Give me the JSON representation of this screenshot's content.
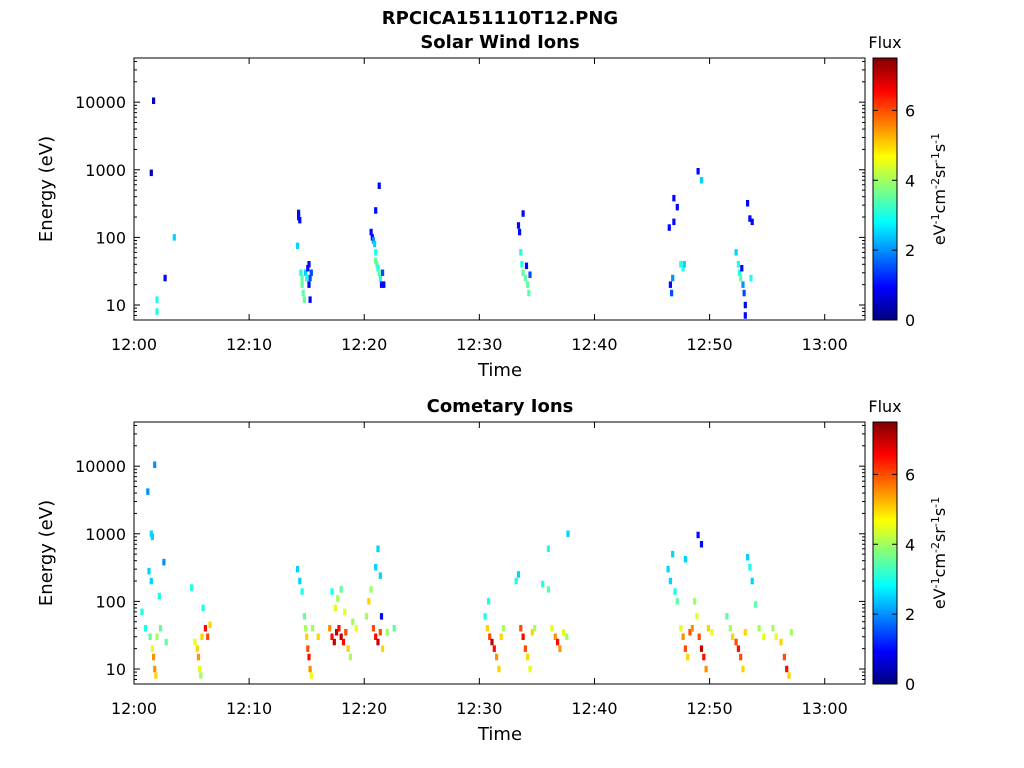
{
  "figure_title": "RPCICA151110T12.PNG",
  "chart_data": [
    {
      "type": "heatmap",
      "title": "Solar Wind Ions",
      "xlabel": "Time",
      "ylabel": "Energy (eV)",
      "y_scale": "log",
      "y_ticks": [
        "10",
        "100",
        "1000",
        "10000"
      ],
      "y_tick_values": [
        10,
        100,
        1000,
        10000
      ],
      "x_ticks": [
        "12:00",
        "12:10",
        "12:20",
        "12:30",
        "12:40",
        "12:50",
        "13:00"
      ],
      "x_tick_values_min": [
        0,
        10,
        20,
        30,
        40,
        50,
        60
      ],
      "xlim_min": [
        0,
        63.5
      ],
      "ylim": [
        6,
        45000
      ],
      "colorbar": {
        "label_top": "Flux",
        "units": "eV-1cm-2sr-1s-1",
        "ticks": [
          "0",
          "2",
          "4",
          "6"
        ],
        "tick_values": [
          0,
          2,
          4,
          6
        ],
        "range": [
          0,
          7.5
        ]
      },
      "cells": [
        [
          1.7,
          10500,
          0.5
        ],
        [
          1.5,
          900,
          0.5
        ],
        [
          2.7,
          25,
          1.0
        ],
        [
          2.0,
          8,
          3.0
        ],
        [
          2.0,
          12,
          3.0
        ],
        [
          3.5,
          100,
          2.5
        ],
        [
          14.2,
          75,
          2.5
        ],
        [
          14.3,
          230,
          1.0
        ],
        [
          14.3,
          200,
          1.0
        ],
        [
          14.4,
          180,
          1.0
        ],
        [
          14.5,
          30,
          3.0
        ],
        [
          14.6,
          25,
          3.5
        ],
        [
          14.6,
          20,
          3.5
        ],
        [
          14.7,
          15,
          3.5
        ],
        [
          14.8,
          12,
          3.5
        ],
        [
          14.9,
          30,
          2.5
        ],
        [
          15.0,
          25,
          3.0
        ],
        [
          15.1,
          35,
          1.0
        ],
        [
          15.2,
          40,
          1.0
        ],
        [
          15.2,
          20,
          1.0
        ],
        [
          15.3,
          25,
          1.5
        ],
        [
          15.3,
          12,
          1.0
        ],
        [
          15.4,
          30,
          1.5
        ],
        [
          20.6,
          120,
          1.0
        ],
        [
          20.7,
          100,
          1.0
        ],
        [
          20.8,
          90,
          2.0
        ],
        [
          20.9,
          80,
          2.5
        ],
        [
          21.0,
          60,
          3.0
        ],
        [
          21.0,
          45,
          3.5
        ],
        [
          21.1,
          40,
          3.5
        ],
        [
          21.2,
          35,
          3.0
        ],
        [
          21.3,
          30,
          3.5
        ],
        [
          21.4,
          25,
          3.0
        ],
        [
          21.5,
          20,
          1.0
        ],
        [
          21.6,
          30,
          1.5
        ],
        [
          21.7,
          20,
          1.0
        ],
        [
          21.0,
          250,
          1.0
        ],
        [
          21.3,
          580,
          1.0
        ],
        [
          33.4,
          150,
          1.0
        ],
        [
          33.5,
          120,
          1.0
        ],
        [
          33.6,
          60,
          3.0
        ],
        [
          33.7,
          40,
          3.0
        ],
        [
          33.8,
          30,
          3.5
        ],
        [
          34.0,
          25,
          3.5
        ],
        [
          34.2,
          20,
          3.5
        ],
        [
          34.3,
          15,
          3.5
        ],
        [
          34.1,
          38,
          1.0
        ],
        [
          34.4,
          28,
          1.5
        ],
        [
          33.8,
          225,
          1.0
        ],
        [
          46.5,
          140,
          1.0
        ],
        [
          46.6,
          20,
          1.0
        ],
        [
          46.7,
          15,
          1.5
        ],
        [
          46.8,
          25,
          2.0
        ],
        [
          46.9,
          380,
          1.0
        ],
        [
          46.9,
          170,
          1.0
        ],
        [
          47.2,
          280,
          1.0
        ],
        [
          47.5,
          40,
          3.0
        ],
        [
          47.7,
          35,
          3.0
        ],
        [
          47.8,
          40,
          2.5
        ],
        [
          49.0,
          950,
          1.0
        ],
        [
          49.3,
          700,
          2.5
        ],
        [
          52.3,
          60,
          2.5
        ],
        [
          52.5,
          40,
          3.0
        ],
        [
          52.6,
          30,
          3.0
        ],
        [
          52.7,
          25,
          3.5
        ],
        [
          52.8,
          35,
          1.0
        ],
        [
          52.9,
          20,
          2.0
        ],
        [
          53.0,
          15,
          1.5
        ],
        [
          53.1,
          10,
          1.0
        ],
        [
          53.1,
          7,
          1.0
        ],
        [
          53.3,
          320,
          1.0
        ],
        [
          53.5,
          190,
          1.0
        ],
        [
          53.6,
          25,
          3.0
        ],
        [
          53.7,
          170,
          1.0
        ]
      ]
    },
    {
      "type": "heatmap",
      "title": "Cometary Ions",
      "xlabel": "Time",
      "ylabel": "Energy (eV)",
      "y_scale": "log",
      "y_ticks": [
        "10",
        "100",
        "1000",
        "10000"
      ],
      "y_tick_values": [
        10,
        100,
        1000,
        10000
      ],
      "x_ticks": [
        "12:00",
        "12:10",
        "12:20",
        "12:30",
        "12:40",
        "12:50",
        "13:00"
      ],
      "x_tick_values_min": [
        0,
        10,
        20,
        30,
        40,
        50,
        60
      ],
      "xlim_min": [
        0,
        63.5
      ],
      "ylim": [
        6,
        45000
      ],
      "colorbar": {
        "label_top": "Flux",
        "units": "eV-1cm-2sr-1s-1",
        "ticks": [
          "0",
          "2",
          "4",
          "6"
        ],
        "tick_values": [
          0,
          2,
          4,
          6
        ],
        "range": [
          0,
          7.5
        ]
      },
      "cells": [
        [
          1.8,
          10500,
          2.0
        ],
        [
          1.2,
          4200,
          2.0
        ],
        [
          1.5,
          1000,
          2.5
        ],
        [
          1.6,
          900,
          2.5
        ],
        [
          1.3,
          280,
          2.5
        ],
        [
          1.5,
          200,
          2.5
        ],
        [
          2.6,
          380,
          2.0
        ],
        [
          2.2,
          120,
          3.0
        ],
        [
          0.7,
          70,
          3.0
        ],
        [
          1.0,
          40,
          3.0
        ],
        [
          1.4,
          30,
          3.5
        ],
        [
          1.6,
          20,
          4.5
        ],
        [
          1.7,
          15,
          5.5
        ],
        [
          1.8,
          10,
          5.5
        ],
        [
          1.9,
          8,
          5.0
        ],
        [
          2.0,
          30,
          4.0
        ],
        [
          2.3,
          40,
          3.5
        ],
        [
          2.8,
          25,
          3.5
        ],
        [
          5.0,
          160,
          3.0
        ],
        [
          5.3,
          25,
          4.5
        ],
        [
          5.5,
          20,
          5.0
        ],
        [
          5.6,
          15,
          5.5
        ],
        [
          5.7,
          10,
          4.5
        ],
        [
          5.8,
          8,
          4.0
        ],
        [
          5.9,
          30,
          5.0
        ],
        [
          6.2,
          40,
          6.5
        ],
        [
          6.4,
          30,
          6.0
        ],
        [
          6.6,
          45,
          5.0
        ],
        [
          6.0,
          80,
          3.0
        ],
        [
          14.2,
          300,
          2.5
        ],
        [
          14.4,
          200,
          2.5
        ],
        [
          14.6,
          140,
          3.0
        ],
        [
          14.8,
          60,
          3.5
        ],
        [
          14.9,
          40,
          4.0
        ],
        [
          15.0,
          30,
          5.0
        ],
        [
          15.1,
          20,
          6.0
        ],
        [
          15.2,
          15,
          6.5
        ],
        [
          15.3,
          10,
          5.5
        ],
        [
          15.4,
          8,
          4.5
        ],
        [
          15.5,
          40,
          4.0
        ],
        [
          16.0,
          30,
          5.0
        ],
        [
          17.0,
          40,
          5.5
        ],
        [
          17.2,
          30,
          6.5
        ],
        [
          17.4,
          25,
          7.0
        ],
        [
          17.6,
          35,
          7.0
        ],
        [
          17.8,
          40,
          6.5
        ],
        [
          18.0,
          30,
          7.0
        ],
        [
          18.2,
          25,
          6.5
        ],
        [
          18.4,
          35,
          6.0
        ],
        [
          18.6,
          20,
          5.0
        ],
        [
          18.8,
          15,
          4.0
        ],
        [
          17.5,
          80,
          4.5
        ],
        [
          17.7,
          110,
          4.0
        ],
        [
          18.0,
          150,
          3.5
        ],
        [
          18.3,
          70,
          4.5
        ],
        [
          17.2,
          140,
          3.0
        ],
        [
          19.0,
          50,
          4.0
        ],
        [
          19.3,
          40,
          4.5
        ],
        [
          20.2,
          60,
          4.0
        ],
        [
          20.4,
          100,
          5.0
        ],
        [
          20.6,
          150,
          4.0
        ],
        [
          20.8,
          40,
          6.0
        ],
        [
          21.0,
          30,
          6.5
        ],
        [
          21.2,
          25,
          7.0
        ],
        [
          21.4,
          35,
          6.0
        ],
        [
          21.6,
          20,
          5.0
        ],
        [
          21.0,
          320,
          2.5
        ],
        [
          21.2,
          600,
          2.5
        ],
        [
          21.4,
          240,
          2.5
        ],
        [
          22.0,
          35,
          4.0
        ],
        [
          22.6,
          40,
          3.5
        ],
        [
          21.5,
          60,
          1.0
        ],
        [
          30.5,
          60,
          3.0
        ],
        [
          30.7,
          40,
          5.0
        ],
        [
          30.9,
          30,
          6.0
        ],
        [
          31.1,
          25,
          7.0
        ],
        [
          31.3,
          20,
          6.5
        ],
        [
          31.5,
          15,
          5.5
        ],
        [
          31.7,
          10,
          5.0
        ],
        [
          31.9,
          30,
          5.0
        ],
        [
          32.1,
          40,
          4.0
        ],
        [
          30.8,
          100,
          3.0
        ],
        [
          33.2,
          200,
          3.0
        ],
        [
          33.4,
          250,
          2.5
        ],
        [
          33.6,
          40,
          6.0
        ],
        [
          33.8,
          30,
          6.5
        ],
        [
          34.0,
          20,
          6.0
        ],
        [
          34.2,
          15,
          5.0
        ],
        [
          34.4,
          10,
          4.5
        ],
        [
          34.6,
          35,
          5.0
        ],
        [
          34.8,
          40,
          4.0
        ],
        [
          35.5,
          180,
          3.0
        ],
        [
          36.0,
          150,
          3.5
        ],
        [
          36.3,
          40,
          4.5
        ],
        [
          36.6,
          30,
          5.5
        ],
        [
          36.8,
          25,
          6.5
        ],
        [
          37.0,
          20,
          5.5
        ],
        [
          37.3,
          35,
          4.5
        ],
        [
          37.6,
          30,
          4.0
        ],
        [
          36.0,
          600,
          3.0
        ],
        [
          37.7,
          1000,
          2.5
        ],
        [
          46.4,
          300,
          2.5
        ],
        [
          46.6,
          200,
          2.5
        ],
        [
          46.8,
          500,
          2.5
        ],
        [
          47.0,
          140,
          3.0
        ],
        [
          47.2,
          100,
          3.5
        ],
        [
          47.5,
          40,
          4.5
        ],
        [
          47.7,
          30,
          5.5
        ],
        [
          47.9,
          20,
          6.0
        ],
        [
          48.1,
          15,
          5.0
        ],
        [
          48.3,
          35,
          6.0
        ],
        [
          48.5,
          40,
          5.5
        ],
        [
          48.7,
          100,
          4.0
        ],
        [
          48.9,
          60,
          4.5
        ],
        [
          49.1,
          30,
          6.0
        ],
        [
          49.3,
          20,
          7.0
        ],
        [
          49.5,
          15,
          6.5
        ],
        [
          49.7,
          10,
          5.5
        ],
        [
          49.9,
          40,
          5.0
        ],
        [
          50.2,
          35,
          4.5
        ],
        [
          49.0,
          960,
          1.0
        ],
        [
          49.3,
          700,
          1.0
        ],
        [
          47.9,
          420,
          2.5
        ],
        [
          51.5,
          60,
          3.5
        ],
        [
          51.8,
          40,
          4.0
        ],
        [
          52.0,
          30,
          5.0
        ],
        [
          52.3,
          25,
          6.0
        ],
        [
          52.5,
          20,
          6.5
        ],
        [
          52.7,
          15,
          6.0
        ],
        [
          52.9,
          10,
          5.0
        ],
        [
          53.1,
          35,
          5.0
        ],
        [
          53.3,
          450,
          2.5
        ],
        [
          53.5,
          320,
          3.0
        ],
        [
          53.7,
          200,
          2.5
        ],
        [
          54.0,
          90,
          3.5
        ],
        [
          54.3,
          40,
          4.0
        ],
        [
          54.7,
          30,
          4.5
        ],
        [
          55.5,
          40,
          4.0
        ],
        [
          55.8,
          30,
          4.5
        ],
        [
          56.2,
          25,
          5.0
        ],
        [
          56.5,
          15,
          6.0
        ],
        [
          56.7,
          10,
          6.5
        ],
        [
          56.9,
          8,
          5.0
        ],
        [
          57.1,
          35,
          4.0
        ]
      ]
    }
  ]
}
